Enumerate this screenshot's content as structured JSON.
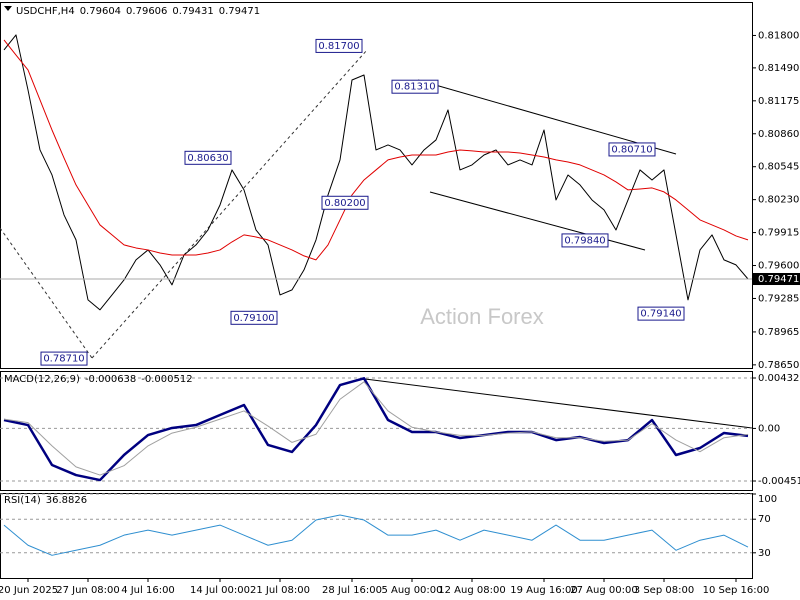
{
  "chart_data": [
    {
      "type": "line",
      "title": "USDCHF,H4",
      "ohlc": [
        0.79604,
        0.79606,
        0.79431,
        0.79471
      ],
      "watermark": "Action Forex",
      "categories": [
        null,
        null,
        "20 Jun 2025",
        null,
        null,
        null,
        null,
        "27 Jun 08:00",
        null,
        null,
        null,
        null,
        "4 Jul 16:00",
        null,
        null,
        null,
        null,
        null,
        "14 Jul 00:00",
        null,
        null,
        null,
        null,
        "21 Jul 08:00",
        null,
        null,
        null,
        null,
        null,
        "28 Jul 16:00",
        null,
        null,
        null,
        null,
        "5 Aug 00:00",
        null,
        null,
        null,
        null,
        "12 Aug 08:00",
        null,
        null,
        null,
        null,
        null,
        "19 Aug 16:00",
        null,
        null,
        null,
        null,
        "27 Aug 00:00",
        null,
        null,
        null,
        null,
        "3 Sep 08:00",
        null,
        null,
        null,
        null,
        null,
        "10 Sep 16:00",
        null
      ],
      "series": [
        {
          "color": "#000000",
          "values": [
            0.81661,
            0.81805,
            0.81279,
            0.80705,
            0.80466,
            0.80084,
            0.79845,
            0.79271,
            0.79176,
            0.79319,
            0.79462,
            0.79654,
            0.79749,
            0.79606,
            0.79415,
            0.79701,
            0.79797,
            0.7994,
            0.80179,
            0.80514,
            0.80323,
            0.7994,
            0.79797,
            0.79319,
            0.79367,
            0.79558,
            0.79845,
            0.80275,
            0.8061,
            0.81374,
            0.81422,
            0.80705,
            0.80753,
            0.80705,
            0.80562,
            0.80705,
            0.80801,
            0.81088,
            0.80514,
            0.80562,
            0.80657,
            0.80705,
            0.80562,
            0.8061,
            0.80562,
            0.80896,
            0.80227,
            0.80466,
            0.80371,
            0.80227,
            0.80132,
            0.7994,
            0.80227,
            0.80514,
            0.80418,
            0.80514,
            0.79893,
            0.79271,
            0.79749,
            0.79893,
            0.79654,
            0.79606,
            0.79471
          ]
        },
        {
          "color": "#e00000",
          "values": [
            0.81757,
            0.81613,
            0.8147,
            0.81183,
            0.80896,
            0.80629,
            0.80371,
            0.80179,
            0.79988,
            0.79893,
            0.79797,
            0.79768,
            0.79749,
            0.7972,
            0.79701,
            0.79701,
            0.79701,
            0.7972,
            0.79749,
            0.79826,
            0.79893,
            0.79873,
            0.79845,
            0.79797,
            0.79749,
            0.79692,
            0.79654,
            0.79797,
            0.80036,
            0.80275,
            0.80418,
            0.80514,
            0.8061,
            0.80638,
            0.80657,
            0.80657,
            0.80657,
            0.80686,
            0.80705,
            0.80696,
            0.80686,
            0.80686,
            0.80686,
            0.80676,
            0.80657,
            0.80638,
            0.8061,
            0.8059,
            0.80562,
            0.80514,
            0.80466,
            0.80399,
            0.80323,
            0.80332,
            0.80342,
            0.80304,
            0.80227,
            0.80132,
            0.80036,
            0.79988,
            0.7994,
            0.79883,
            0.79845
          ]
        }
      ],
      "last_price": 0.79471,
      "annotations": [
        {
          "value": 0.817,
          "label": "0.81700"
        },
        {
          "value": 0.8131,
          "label": "0.81310"
        },
        {
          "value": 0.8063,
          "label": "0.80630"
        },
        {
          "value": 0.802,
          "label": "0.80200"
        },
        {
          "value": 0.8071,
          "label": "0.80710"
        },
        {
          "value": 0.7984,
          "label": "0.79840"
        },
        {
          "value": 0.791,
          "label": "0.79100"
        },
        {
          "value": 0.7914,
          "label": "0.79140"
        },
        {
          "value": 0.7871,
          "label": "0.78710"
        }
      ],
      "ylim": [
        0.7862,
        0.8212
      ],
      "yticks": [
        {
          "value": 0.818,
          "label": "0.81800"
        },
        {
          "value": 0.8149,
          "label": "0.81490"
        },
        0.81175,
        {
          "value": 0.8086,
          "label": "0.80860"
        },
        0.80545,
        {
          "value": 0.8023,
          "label": "0.80230"
        },
        0.79915,
        {
          "value": 0.796,
          "label": "0.79600"
        },
        0.79285,
        0.78965,
        {
          "value": 0.7865,
          "label": "0.78650"
        }
      ],
      "grid": false
    },
    {
      "type": "line",
      "title": "MACD(12,26,9)",
      "header_values": [
        -0.000638,
        -0.000512
      ],
      "series": [
        {
          "color": "#000080",
          "values": [
            0.00072,
            0.00029,
            -0.00314,
            -0.004,
            -0.00443,
            -0.00228,
            -0.00057,
            4e-05,
            0.00029,
            0.00115,
            0.00201,
            -0.00142,
            -0.00202,
            0.00029,
            0.00372,
            0.0043,
            0.00072,
            -0.00031,
            -0.00031,
            -0.00082,
            -0.00057,
            -0.00031,
            -0.00031,
            -0.001,
            -0.00074,
            -0.00125,
            -0.001,
            0.00072,
            -0.00228,
            -0.00168,
            -0.00039,
            -0.000638
          ]
        },
        {
          "color": "#a0a0a0",
          "values": [
            0.0008,
            0.0005,
            -0.0015,
            -0.0033,
            -0.004,
            -0.0032,
            -0.0015,
            -0.0004,
            0.0001,
            0.0008,
            0.0015,
            0.0002,
            -0.0012,
            -0.0005,
            0.0025,
            0.004,
            0.0015,
            0.0001,
            -0.0003,
            -0.0006,
            -0.0006,
            -0.0004,
            -0.0003,
            -0.0008,
            -0.0008,
            -0.0011,
            -0.001,
            0.0004,
            -0.001,
            -0.002,
            -0.0008,
            -0.000512
          ]
        }
      ],
      "ylim": [
        -0.005283,
        0.004926
      ],
      "yticks": [
        0.004325,
        {
          "value": 0,
          "label": "0.00"
        },
        -0.004511
      ],
      "grid": true
    },
    {
      "type": "line",
      "title": "RSI(14)",
      "header_value": 36.8826,
      "series": [
        {
          "color": "#2f8fd0",
          "values": [
            63,
            39,
            27,
            33,
            39,
            51,
            57,
            51,
            57,
            63,
            51,
            39,
            45,
            69,
            75,
            69,
            51,
            51,
            57,
            45,
            57,
            51,
            45,
            63,
            45,
            45,
            51,
            57,
            33,
            45,
            51,
            36.8826
          ]
        }
      ],
      "ylim": [
        0,
        100
      ],
      "yticks": [
        100,
        70,
        30
      ],
      "grid": true
    }
  ]
}
